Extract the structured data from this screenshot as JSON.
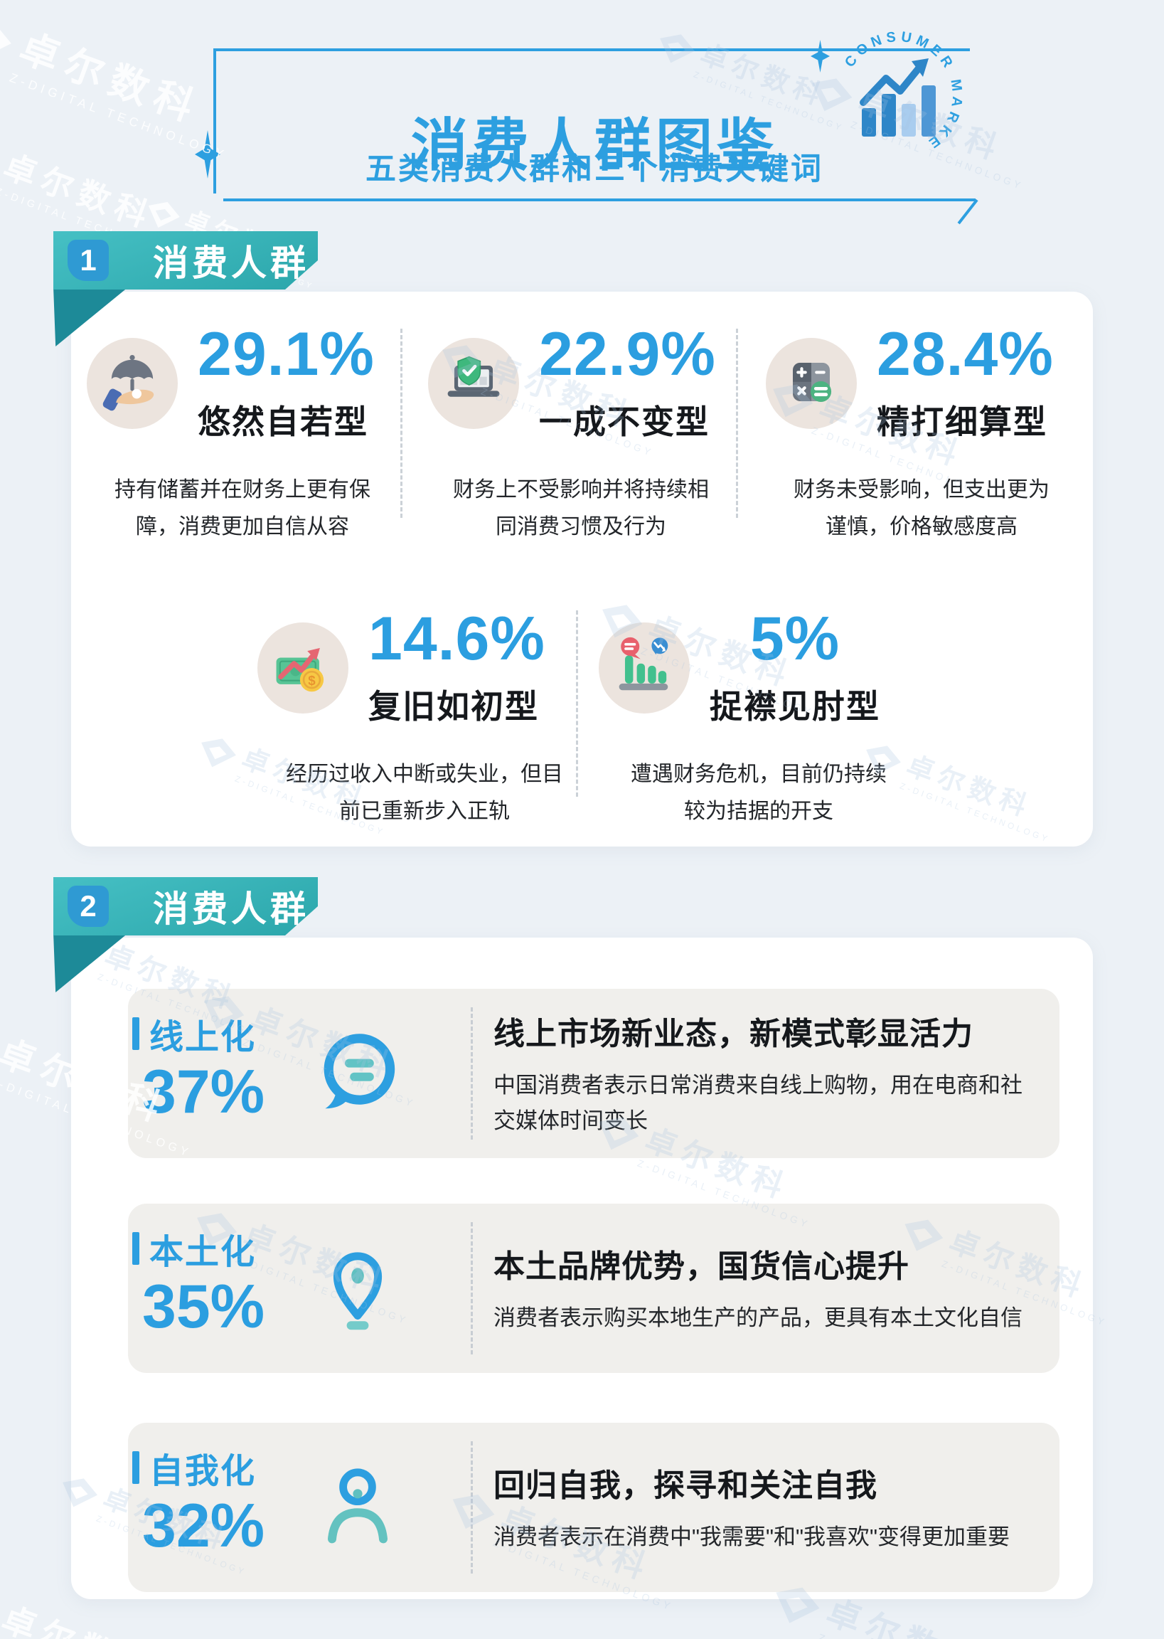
{
  "watermark": {
    "name": "卓尔数科",
    "subtitle": "Z-DIGITAL TECHNOLOGY"
  },
  "header": {
    "title": "消费人群图鉴",
    "subtitle": "五类消费人群和三个消费关键词",
    "badge_text": "CONSUMER MARKET"
  },
  "sections": [
    {
      "number": "1",
      "title": "消费人群",
      "cards": [
        {
          "icon": "umbrella-hand-icon",
          "percent": "29.1%",
          "label": "悠然自若型",
          "desc": "持有储蓄并在财务上更有保障，消费更加自信从容"
        },
        {
          "icon": "laptop-shield-icon",
          "percent": "22.9%",
          "label": "一成不变型",
          "desc": "财务上不受影响并将持续相同消费习惯及行为"
        },
        {
          "icon": "calculator-icon",
          "percent": "28.4%",
          "label": "精打细算型",
          "desc": "财务未受影响，但支出更为谨慎，价格敏感度高"
        },
        {
          "icon": "money-growth-icon",
          "percent": "14.6%",
          "label": "复旧如初型",
          "desc": "经历过收入中断或失业，但目前已重新步入正轨"
        },
        {
          "icon": "declining-bars-icon",
          "percent": "5%",
          "label": "捉襟见肘型",
          "desc": "遭遇财务危机，目前仍持续较为拮据的开支"
        }
      ]
    },
    {
      "number": "2",
      "title": "消费人群",
      "rows": [
        {
          "icon": "chat-bubble-icon",
          "keyword": "线上化",
          "percent": "37%",
          "heading": "线上市场新业态，新模式彰显活力",
          "desc": "中国消费者表示日常消费来自线上购物，用在电商和社交媒体时间变长"
        },
        {
          "icon": "location-pin-icon",
          "keyword": "本土化",
          "percent": "35%",
          "heading": "本土品牌优势，国货信心提升",
          "desc": "消费者表示购买本地生产的产品，更具有本土文化自信"
        },
        {
          "icon": "person-icon",
          "keyword": "自我化",
          "percent": "32%",
          "heading": "回归自我，探寻和关注自我",
          "desc": "消费者表示在消费中\"我需要\"和\"我喜欢\"变得更加重要"
        }
      ]
    }
  ],
  "colors": {
    "accent_blue": "#2D9FE0",
    "ribbon_teal": "#2FA9AE",
    "chip_blue": "#2F9AD3",
    "background": "#ECF1F6",
    "panel": "#FFFFFF",
    "row_bg": "#F0EFEC"
  }
}
